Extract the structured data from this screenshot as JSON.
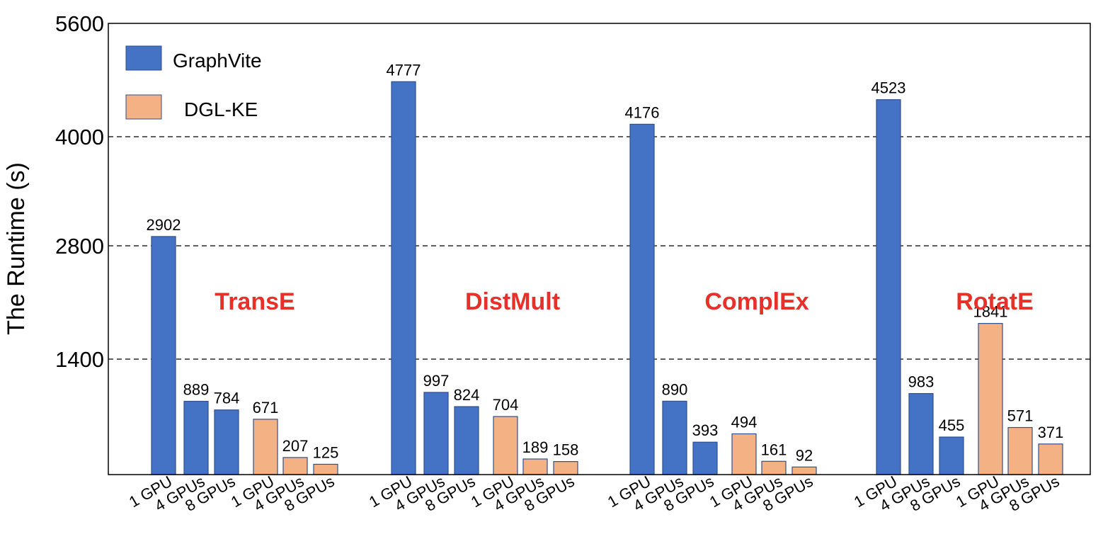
{
  "chart_data": {
    "type": "bar",
    "ylabel": "The Runtime (s)",
    "xlabel": "",
    "ylim": [
      0,
      5600
    ],
    "yticks": [
      1400,
      2800,
      4000,
      5600
    ],
    "grid": "dashed horizontal at 1400, 2800, 4000",
    "legend_position": "top-left",
    "colors": {
      "GraphVite": "#4472C4",
      "DGL-KE": "#F4B183",
      "group_label": "#E8302A"
    },
    "series": [
      {
        "name": "GraphVite"
      },
      {
        "name": "DGL-KE"
      }
    ],
    "groups": [
      {
        "name": "TransE",
        "bars": [
          {
            "series": "GraphVite",
            "label": "1 GPU",
            "value": 2902
          },
          {
            "series": "GraphVite",
            "label": "4 GPUs",
            "value": 889
          },
          {
            "series": "GraphVite",
            "label": "8 GPUs",
            "value": 784
          },
          {
            "series": "DGL-KE",
            "label": "1 GPU",
            "value": 671
          },
          {
            "series": "DGL-KE",
            "label": "4 GPUs",
            "value": 207
          },
          {
            "series": "DGL-KE",
            "label": "8 GPUs",
            "value": 125
          }
        ]
      },
      {
        "name": "DistMult",
        "bars": [
          {
            "series": "GraphVite",
            "label": "1 GPU",
            "value": 4777
          },
          {
            "series": "GraphVite",
            "label": "4 GPUs",
            "value": 997
          },
          {
            "series": "GraphVite",
            "label": "8 GPUs",
            "value": 824
          },
          {
            "series": "DGL-KE",
            "label": "1 GPU",
            "value": 704
          },
          {
            "series": "DGL-KE",
            "label": "4 GPUs",
            "value": 189
          },
          {
            "series": "DGL-KE",
            "label": "8 GPUs",
            "value": 158
          }
        ]
      },
      {
        "name": "ComplEx",
        "bars": [
          {
            "series": "GraphVite",
            "label": "1 GPU",
            "value": 4176
          },
          {
            "series": "GraphVite",
            "label": "4 GPUs",
            "value": 890
          },
          {
            "series": "GraphVite",
            "label": "8 GPUs",
            "value": 393
          },
          {
            "series": "DGL-KE",
            "label": "1 GPU",
            "value": 494
          },
          {
            "series": "DGL-KE",
            "label": "4 GPUs",
            "value": 161
          },
          {
            "series": "DGL-KE",
            "label": "8 GPUs",
            "value": 92
          }
        ]
      },
      {
        "name": "RotatE",
        "bars": [
          {
            "series": "GraphVite",
            "label": "1 GPU",
            "value": 4523
          },
          {
            "series": "GraphVite",
            "label": "4 GPUs",
            "value": 983
          },
          {
            "series": "GraphVite",
            "label": "8 GPUs",
            "value": 455
          },
          {
            "series": "DGL-KE",
            "label": "1 GPU",
            "value": 1841
          },
          {
            "series": "DGL-KE",
            "label": "4 GPUs",
            "value": 571
          },
          {
            "series": "DGL-KE",
            "label": "8 GPUs",
            "value": 371
          }
        ]
      }
    ]
  }
}
